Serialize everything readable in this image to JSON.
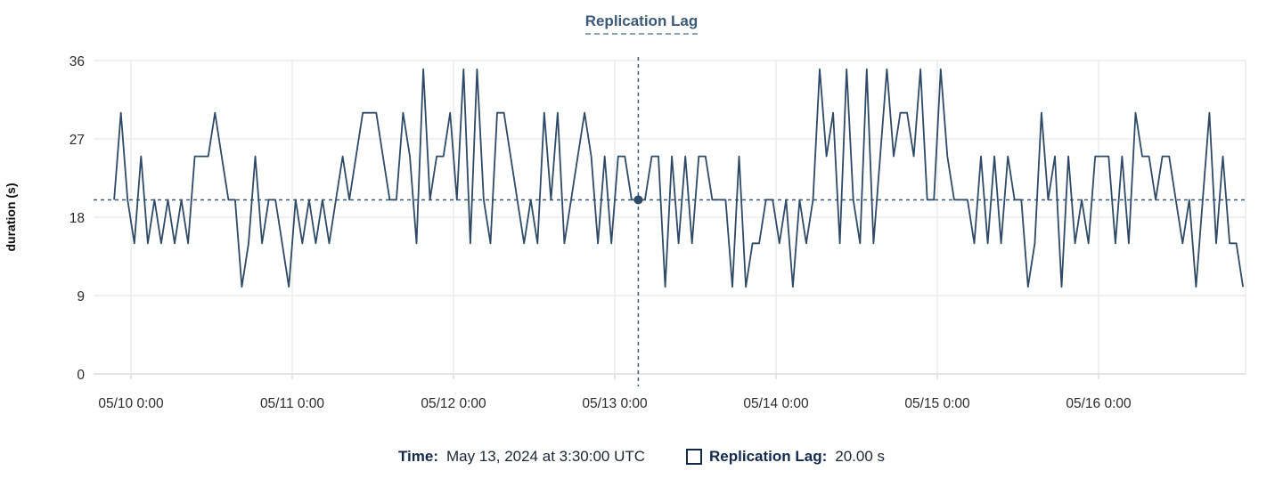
{
  "chart": {
    "title": "Replication Lag",
    "y_axis_label": "duration (s)"
  },
  "tooltip": {
    "time_label": "Time:",
    "time_value": "May 13, 2024 at 3:30:00 UTC",
    "series_label": "Replication Lag:",
    "series_value": "20.00 s"
  },
  "colors": {
    "line": "#2e4a66",
    "crosshair": "#3b5a78",
    "dot": "#2e4a66",
    "grid": "#ebebeb",
    "axis_line": "#dcdcdc",
    "tick_text": "#2b2b2b",
    "title_text": "#3c5a78"
  },
  "chart_data": {
    "type": "line",
    "title": "Replication Lag",
    "xlabel": "",
    "ylabel": "duration (s)",
    "ylim": [
      0,
      36
    ],
    "y_ticks": [
      0,
      9,
      18,
      27,
      36
    ],
    "x_tick_labels": [
      "05/10 0:00",
      "05/11 0:00",
      "05/12 0:00",
      "05/13 0:00",
      "05/14 0:00",
      "05/15 0:00",
      "05/16 0:00"
    ],
    "grid": true,
    "legend_position": "bottom",
    "series": [
      {
        "name": "Replication Lag",
        "units": "s",
        "start_time": "2024-05-09 21:30 UTC",
        "interval_hours": 1,
        "values_estimated": true,
        "values": [
          20,
          30,
          20,
          15,
          25,
          15,
          20,
          15,
          20,
          15,
          20,
          15,
          25,
          25,
          25,
          30,
          25,
          20,
          20,
          10,
          15,
          25,
          15,
          20,
          20,
          15,
          10,
          20,
          15,
          20,
          15,
          20,
          15,
          20,
          25,
          20,
          25,
          30,
          30,
          30,
          25,
          20,
          20,
          30,
          25,
          15,
          35,
          20,
          25,
          25,
          30,
          20,
          35,
          15,
          35,
          20,
          15,
          30,
          30,
          25,
          20,
          15,
          20,
          15,
          30,
          20,
          30,
          15,
          20,
          25,
          30,
          25,
          15,
          25,
          15,
          25,
          25,
          20,
          20,
          20,
          25,
          25,
          10,
          25,
          15,
          25,
          15,
          25,
          25,
          20,
          20,
          20,
          10,
          25,
          10,
          15,
          15,
          20,
          20,
          15,
          20,
          10,
          20,
          15,
          20,
          35,
          25,
          30,
          15,
          35,
          20,
          15,
          35,
          15,
          25,
          35,
          25,
          30,
          30,
          25,
          35,
          20,
          20,
          35,
          25,
          20,
          20,
          20,
          15,
          25,
          15,
          25,
          15,
          25,
          20,
          20,
          10,
          15,
          30,
          20,
          25,
          10,
          25,
          15,
          20,
          15,
          25,
          25,
          25,
          15,
          25,
          15,
          30,
          25,
          25,
          20,
          25,
          25,
          20,
          15,
          20,
          10,
          20,
          30,
          15,
          25,
          15,
          15,
          10
        ]
      }
    ],
    "selected_point": {
      "index": 78,
      "time": "May 13, 2024 at 3:30:00 UTC",
      "value": 20.0,
      "crosshair": "dashed vertical and horizontal lines with dot at intersection"
    }
  }
}
